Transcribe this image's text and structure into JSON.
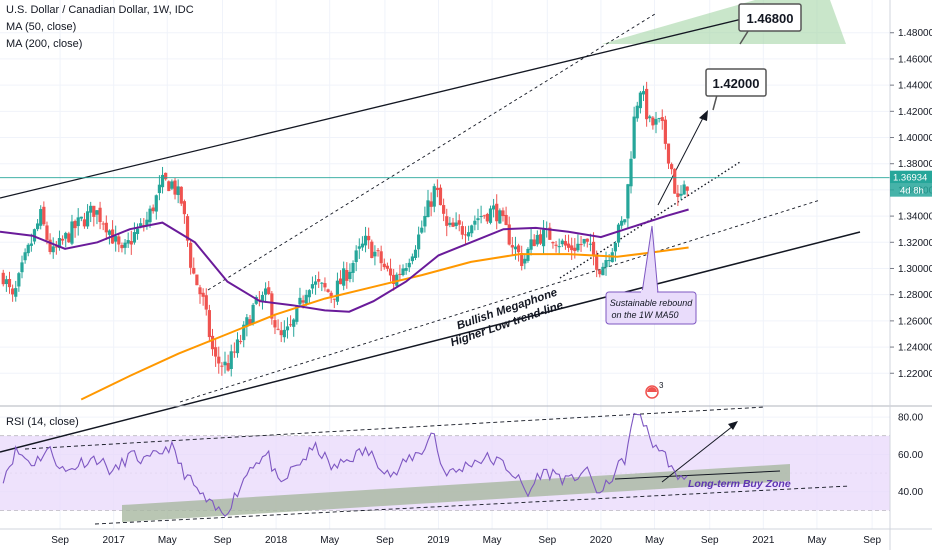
{
  "header": {
    "symbol_line": "U.S. Dollar / Canadian Dollar, 1W, IDC",
    "ma50_label": "MA (50, close)",
    "ma200_label": "MA (200, close)"
  },
  "rsi_panel": {
    "label": "RSI (14, close)"
  },
  "price_tag": {
    "value": "1.36934",
    "countdown": "4d 8h"
  },
  "annotations": {
    "target_1": "1.46800",
    "target_2": "1.42000",
    "megaphone_line1": "Bullish Megaphone",
    "megaphone_line2": "Higher Low trend-line",
    "rebound_line1": "Sustainable rebound",
    "rebound_line2": "on the 1W MA50",
    "buy_zone": "Long-term Buy Zone",
    "alert_count": "3"
  },
  "colors": {
    "up": "#26a69a",
    "down": "#ef5350",
    "ma50": "#6a1b9a",
    "ma200": "#ff9800",
    "rsi": "#7e57c2",
    "rsi_band": "#e8d8fb",
    "target_zone": "#a5d6a7",
    "buy_zone": "#a8b8a0"
  },
  "chart_data": [
    {
      "type": "candlestick",
      "y_ticks": [
        1.22,
        1.24,
        1.26,
        1.28,
        1.3,
        1.32,
        1.34,
        1.36,
        1.38,
        1.4,
        1.42,
        1.44,
        1.46,
        1.48
      ],
      "ylim": [
        1.195,
        1.505
      ],
      "x_labels": [
        "Sep",
        "2017",
        "May",
        "Sep",
        "2018",
        "May",
        "Sep",
        "2019",
        "May",
        "Sep",
        "2020",
        "May",
        "Sep",
        "2021",
        "May",
        "Sep"
      ],
      "x_label_times": [
        2016.67,
        2017.0,
        2017.33,
        2017.67,
        2018.0,
        2018.33,
        2018.67,
        2019.0,
        2019.33,
        2019.67,
        2020.0,
        2020.33,
        2020.67,
        2021.0,
        2021.33,
        2021.67
      ],
      "anchors": [
        [
          2016.32,
          1.295
        ],
        [
          2016.38,
          1.275
        ],
        [
          2016.45,
          1.305
        ],
        [
          2016.55,
          1.34
        ],
        [
          2016.62,
          1.31
        ],
        [
          2016.75,
          1.33
        ],
        [
          2016.88,
          1.345
        ],
        [
          2016.95,
          1.335
        ],
        [
          2017.05,
          1.31
        ],
        [
          2017.12,
          1.325
        ],
        [
          2017.2,
          1.335
        ],
        [
          2017.3,
          1.365
        ],
        [
          2017.36,
          1.365
        ],
        [
          2017.42,
          1.35
        ],
        [
          2017.48,
          1.3
        ],
        [
          2017.55,
          1.275
        ],
        [
          2017.62,
          1.23
        ],
        [
          2017.7,
          1.225
        ],
        [
          2017.78,
          1.245
        ],
        [
          2017.86,
          1.27
        ],
        [
          2017.95,
          1.28
        ],
        [
          2018.02,
          1.245
        ],
        [
          2018.1,
          1.255
        ],
        [
          2018.2,
          1.29
        ],
        [
          2018.28,
          1.285
        ],
        [
          2018.35,
          1.28
        ],
        [
          2018.45,
          1.3
        ],
        [
          2018.55,
          1.32
        ],
        [
          2018.62,
          1.31
        ],
        [
          2018.72,
          1.29
        ],
        [
          2018.8,
          1.305
        ],
        [
          2018.88,
          1.325
        ],
        [
          2018.98,
          1.362
        ],
        [
          2019.05,
          1.33
        ],
        [
          2019.15,
          1.33
        ],
        [
          2019.25,
          1.34
        ],
        [
          2019.35,
          1.345
        ],
        [
          2019.45,
          1.32
        ],
        [
          2019.52,
          1.305
        ],
        [
          2019.6,
          1.325
        ],
        [
          2019.7,
          1.325
        ],
        [
          2019.8,
          1.315
        ],
        [
          2019.9,
          1.32
        ],
        [
          2020.0,
          1.3
        ],
        [
          2020.08,
          1.32
        ],
        [
          2020.15,
          1.34
        ],
        [
          2020.2,
          1.41
        ],
        [
          2020.24,
          1.44
        ],
        [
          2020.3,
          1.41
        ],
        [
          2020.37,
          1.41
        ],
        [
          2020.43,
          1.38
        ],
        [
          2020.47,
          1.35
        ],
        [
          2020.52,
          1.36
        ],
        [
          2020.54,
          1.369
        ]
      ],
      "ma50": [
        [
          2016.3,
          1.328
        ],
        [
          2016.5,
          1.325
        ],
        [
          2016.7,
          1.315
        ],
        [
          2016.9,
          1.32
        ],
        [
          2017.1,
          1.33
        ],
        [
          2017.3,
          1.335
        ],
        [
          2017.5,
          1.32
        ],
        [
          2017.7,
          1.29
        ],
        [
          2017.9,
          1.275
        ],
        [
          2018.1,
          1.272
        ],
        [
          2018.3,
          1.268
        ],
        [
          2018.45,
          1.267
        ],
        [
          2018.6,
          1.275
        ],
        [
          2018.8,
          1.29
        ],
        [
          2019.0,
          1.31
        ],
        [
          2019.2,
          1.32
        ],
        [
          2019.4,
          1.33
        ],
        [
          2019.6,
          1.331
        ],
        [
          2019.8,
          1.328
        ],
        [
          2020.0,
          1.324
        ],
        [
          2020.2,
          1.332
        ],
        [
          2020.4,
          1.34
        ],
        [
          2020.54,
          1.345
        ]
      ],
      "ma200": [
        [
          2016.8,
          1.2
        ],
        [
          2017.1,
          1.218
        ],
        [
          2017.4,
          1.235
        ],
        [
          2017.7,
          1.25
        ],
        [
          2018.0,
          1.265
        ],
        [
          2018.3,
          1.277
        ],
        [
          2018.6,
          1.286
        ],
        [
          2018.9,
          1.295
        ],
        [
          2019.2,
          1.305
        ],
        [
          2019.5,
          1.311
        ],
        [
          2019.8,
          1.311
        ],
        [
          2020.1,
          1.309
        ],
        [
          2020.3,
          1.312
        ],
        [
          2020.54,
          1.316
        ]
      ],
      "last_price": 1.36934
    },
    {
      "type": "line",
      "name": "RSI",
      "y_ticks": [
        40,
        60,
        80
      ],
      "ylim": [
        20,
        86
      ],
      "band": [
        30,
        70
      ],
      "anchors": [
        [
          2016.32,
          48
        ],
        [
          2016.4,
          62
        ],
        [
          2016.5,
          55
        ],
        [
          2016.6,
          63
        ],
        [
          2016.7,
          50
        ],
        [
          2016.8,
          56
        ],
        [
          2016.9,
          58
        ],
        [
          2017.0,
          50
        ],
        [
          2017.1,
          60
        ],
        [
          2017.2,
          56
        ],
        [
          2017.3,
          62
        ],
        [
          2017.35,
          65
        ],
        [
          2017.42,
          52
        ],
        [
          2017.52,
          40
        ],
        [
          2017.6,
          32
        ],
        [
          2017.68,
          28
        ],
        [
          2017.75,
          38
        ],
        [
          2017.85,
          55
        ],
        [
          2017.95,
          60
        ],
        [
          2018.02,
          42
        ],
        [
          2018.1,
          52
        ],
        [
          2018.2,
          60
        ],
        [
          2018.25,
          64
        ],
        [
          2018.35,
          52
        ],
        [
          2018.45,
          58
        ],
        [
          2018.55,
          62
        ],
        [
          2018.62,
          57
        ],
        [
          2018.72,
          48
        ],
        [
          2018.82,
          58
        ],
        [
          2018.9,
          62
        ],
        [
          2018.97,
          73
        ],
        [
          2019.02,
          52
        ],
        [
          2019.1,
          50
        ],
        [
          2019.2,
          56
        ],
        [
          2019.3,
          58
        ],
        [
          2019.4,
          55
        ],
        [
          2019.48,
          48
        ],
        [
          2019.55,
          38
        ],
        [
          2019.62,
          50
        ],
        [
          2019.72,
          50
        ],
        [
          2019.8,
          45
        ],
        [
          2019.9,
          52
        ],
        [
          2020.0,
          38
        ],
        [
          2020.08,
          50
        ],
        [
          2020.15,
          58
        ],
        [
          2020.2,
          79
        ],
        [
          2020.24,
          83
        ],
        [
          2020.3,
          68
        ],
        [
          2020.37,
          62
        ],
        [
          2020.43,
          55
        ],
        [
          2020.47,
          44
        ],
        [
          2020.52,
          50
        ],
        [
          2020.54,
          51
        ]
      ]
    }
  ]
}
